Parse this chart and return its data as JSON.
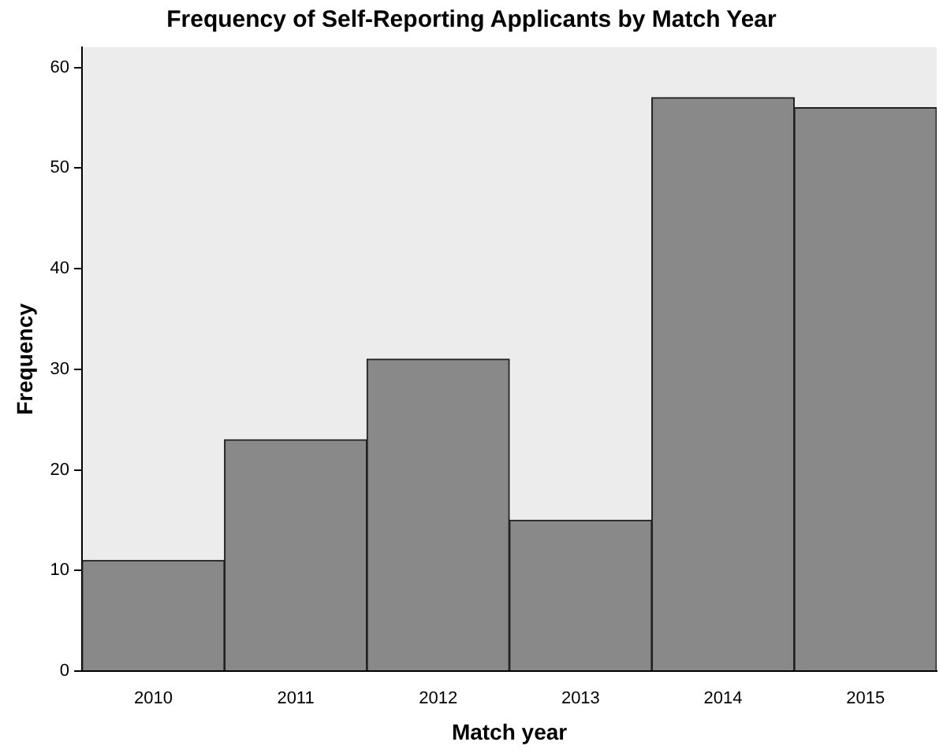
{
  "chart_data": {
    "type": "bar",
    "title": "Frequency of Self-Reporting Applicants by Match Year",
    "xlabel": "Match year",
    "ylabel": "Frequency",
    "categories": [
      "2010",
      "2011",
      "2012",
      "2013",
      "2014",
      "2015"
    ],
    "values": [
      11,
      23,
      31,
      15,
      57,
      56
    ],
    "color": "#898989",
    "ylim": [
      0,
      62
    ],
    "yticks": [
      0,
      10,
      20,
      30,
      40,
      50,
      60
    ],
    "grid": false,
    "legend": false
  }
}
